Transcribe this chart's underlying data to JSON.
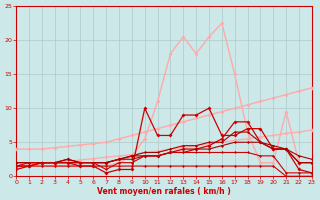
{
  "bg_color": "#cce8e8",
  "grid_color": "#b0c8c8",
  "xlabel": "Vent moyen/en rafales ( km/h )",
  "xlabel_color": "#cc0000",
  "tick_color": "#cc0000",
  "xmin": 0,
  "xmax": 23,
  "ymin": 0,
  "ymax": 25,
  "yticks": [
    0,
    5,
    10,
    15,
    20,
    25
  ],
  "xticks": [
    0,
    1,
    2,
    3,
    4,
    5,
    6,
    7,
    8,
    9,
    10,
    11,
    12,
    13,
    14,
    15,
    16,
    17,
    18,
    19,
    20,
    21,
    22,
    23
  ],
  "series": [
    {
      "x": [
        0,
        1,
        2,
        3,
        4,
        5,
        6,
        7,
        8,
        9,
        10,
        11,
        12,
        13,
        14,
        15,
        16,
        17,
        18,
        19,
        20,
        21,
        22,
        23
      ],
      "y": [
        4,
        4,
        4,
        4.2,
        4.4,
        4.6,
        4.8,
        5,
        5.5,
        6,
        6.5,
        7,
        7.5,
        8,
        8.5,
        9,
        9.5,
        10,
        10.5,
        11,
        11.5,
        12,
        12.5,
        13
      ],
      "color": "#ffaaaa",
      "lw": 1.0,
      "marker": "D",
      "ms": 2.0
    },
    {
      "x": [
        0,
        1,
        2,
        3,
        4,
        5,
        6,
        7,
        8,
        9,
        10,
        11,
        12,
        13,
        14,
        15,
        16,
        17,
        18,
        19,
        20,
        21,
        22,
        23
      ],
      "y": [
        1.5,
        1.7,
        1.9,
        2.0,
        2.2,
        2.4,
        2.6,
        2.8,
        3.0,
        3.2,
        3.5,
        3.7,
        4.0,
        4.2,
        4.5,
        4.8,
        5.0,
        5.3,
        5.5,
        5.8,
        6.0,
        6.3,
        6.5,
        6.8
      ],
      "color": "#ffaaaa",
      "lw": 0.9,
      "marker": "D",
      "ms": 2.0
    },
    {
      "x": [
        0,
        1,
        2,
        3,
        4,
        5,
        6,
        7,
        8,
        9,
        10,
        11,
        12,
        13,
        14,
        15,
        16,
        17,
        18,
        19,
        20,
        21,
        22,
        23
      ],
      "y": [
        1.5,
        1.5,
        1.5,
        1.5,
        1.5,
        1.5,
        1.5,
        1.5,
        2,
        3,
        5.5,
        11,
        18,
        20.5,
        18,
        20.5,
        22.5,
        15,
        6.5,
        2,
        2,
        9.5,
        2,
        2
      ],
      "color": "#ffaaaa",
      "lw": 1.0,
      "marker": "D",
      "ms": 2.0
    },
    {
      "x": [
        0,
        1,
        2,
        3,
        4,
        5,
        6,
        7,
        8,
        9,
        10,
        11,
        12,
        13,
        14,
        15,
        16,
        17,
        18,
        19,
        20,
        21,
        22,
        23
      ],
      "y": [
        1.5,
        1.5,
        1.5,
        1.5,
        1.5,
        1.5,
        1.5,
        1.5,
        1.5,
        1.5,
        1.5,
        1.5,
        1.5,
        1.5,
        1.5,
        1.5,
        1.5,
        1.5,
        1.5,
        1.5,
        1.5,
        0,
        0,
        0
      ],
      "color": "#cc0000",
      "lw": 0.8,
      "marker": "D",
      "ms": 1.5
    },
    {
      "x": [
        0,
        1,
        2,
        3,
        4,
        5,
        6,
        7,
        8,
        9,
        10,
        11,
        12,
        13,
        14,
        15,
        16,
        17,
        18,
        19,
        20,
        21,
        22,
        23
      ],
      "y": [
        1,
        1.5,
        2,
        2,
        2,
        1.5,
        1.5,
        0.5,
        1,
        1,
        10,
        6,
        6,
        9,
        9,
        10,
        6,
        6,
        7,
        7,
        4,
        4,
        1,
        0.5
      ],
      "color": "#cc0000",
      "lw": 0.9,
      "marker": "D",
      "ms": 2.0
    },
    {
      "x": [
        0,
        1,
        2,
        3,
        4,
        5,
        6,
        7,
        8,
        9,
        10,
        11,
        12,
        13,
        14,
        15,
        16,
        17,
        18,
        19,
        20,
        21,
        22,
        23
      ],
      "y": [
        1.5,
        1.5,
        2,
        2,
        2.5,
        2,
        2,
        2,
        2.5,
        3,
        3,
        3,
        3.5,
        4,
        4,
        4.5,
        5.5,
        8,
        8,
        5,
        4,
        4,
        2,
        2
      ],
      "color": "#cc0000",
      "lw": 0.9,
      "marker": "D",
      "ms": 2.0
    },
    {
      "x": [
        0,
        1,
        2,
        3,
        4,
        5,
        6,
        7,
        8,
        9,
        10,
        11,
        12,
        13,
        14,
        15,
        16,
        17,
        18,
        19,
        20,
        21,
        22,
        23
      ],
      "y": [
        2,
        2,
        2,
        2,
        2,
        2,
        2,
        2,
        2.5,
        2.5,
        3,
        3,
        3.5,
        3.5,
        4,
        4,
        4.5,
        5,
        5,
        5,
        4.5,
        4,
        3,
        2.5
      ],
      "color": "#aa0000",
      "lw": 0.8,
      "marker": "D",
      "ms": 1.5
    },
    {
      "x": [
        0,
        1,
        2,
        3,
        4,
        5,
        6,
        7,
        8,
        9,
        10,
        11,
        12,
        13,
        14,
        15,
        16,
        17,
        18,
        19,
        20,
        21,
        22,
        23
      ],
      "y": [
        2,
        2,
        2,
        2,
        2.5,
        2,
        2,
        2,
        2.5,
        3,
        3.5,
        3.5,
        4,
        4.5,
        4.5,
        5,
        5,
        6.5,
        6.5,
        5,
        4,
        4,
        2,
        2
      ],
      "color": "#aa0000",
      "lw": 0.8,
      "marker": "D",
      "ms": 1.5
    },
    {
      "x": [
        0,
        1,
        2,
        3,
        4,
        5,
        6,
        7,
        8,
        9,
        10,
        11,
        12,
        13,
        14,
        15,
        16,
        17,
        18,
        19,
        20,
        21,
        22,
        23
      ],
      "y": [
        1.5,
        2,
        2,
        2,
        2,
        2,
        2,
        1,
        2,
        2,
        3,
        3,
        3.5,
        3.5,
        3.5,
        3.5,
        3.5,
        3.5,
        3.5,
        3,
        3,
        0.5,
        0.5,
        0.5
      ],
      "color": "#cc0000",
      "lw": 0.8,
      "marker": "D",
      "ms": 1.5
    }
  ]
}
